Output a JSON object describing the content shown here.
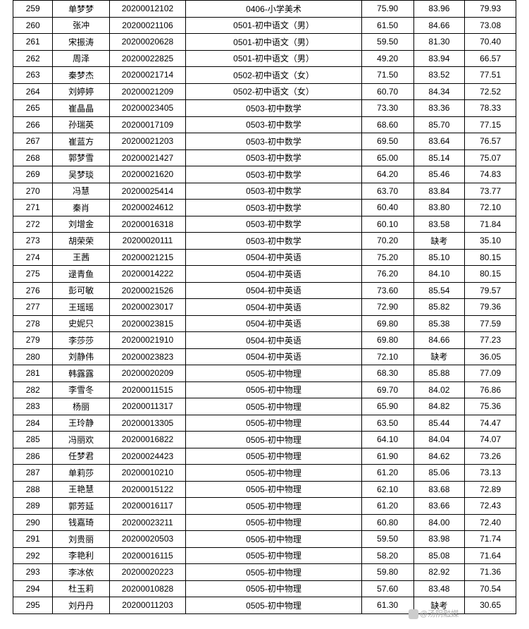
{
  "watermark": "@汤阴融媒",
  "table": {
    "columns": [
      {
        "key": "idx",
        "class": "col-idx"
      },
      {
        "key": "name",
        "class": "col-name"
      },
      {
        "key": "exam",
        "class": "col-exam"
      },
      {
        "key": "subject",
        "class": "col-subj"
      },
      {
        "key": "s1",
        "class": "col-s1"
      },
      {
        "key": "s2",
        "class": "col-s2"
      },
      {
        "key": "s3",
        "class": "col-s3"
      }
    ],
    "rows": [
      {
        "idx": "259",
        "name": "单梦梦",
        "exam": "20200012102",
        "subject": "0406-小学美术",
        "s1": "75.90",
        "s2": "83.96",
        "s3": "79.93"
      },
      {
        "idx": "260",
        "name": "张冲",
        "exam": "20200021106",
        "subject": "0501-初中语文（男）",
        "s1": "61.50",
        "s2": "84.66",
        "s3": "73.08"
      },
      {
        "idx": "261",
        "name": "宋振涛",
        "exam": "20200020628",
        "subject": "0501-初中语文（男）",
        "s1": "59.50",
        "s2": "81.30",
        "s3": "70.40"
      },
      {
        "idx": "262",
        "name": "周泽",
        "exam": "20200022825",
        "subject": "0501-初中语文（男）",
        "s1": "49.20",
        "s2": "83.94",
        "s3": "66.57"
      },
      {
        "idx": "263",
        "name": "秦梦杰",
        "exam": "20200021714",
        "subject": "0502-初中语文（女）",
        "s1": "71.50",
        "s2": "83.52",
        "s3": "77.51"
      },
      {
        "idx": "264",
        "name": "刘婷婷",
        "exam": "20200021209",
        "subject": "0502-初中语文（女）",
        "s1": "60.70",
        "s2": "84.34",
        "s3": "72.52"
      },
      {
        "idx": "265",
        "name": "崔晶晶",
        "exam": "20200023405",
        "subject": "0503-初中数学",
        "s1": "73.30",
        "s2": "83.36",
        "s3": "78.33"
      },
      {
        "idx": "266",
        "name": "孙瑞英",
        "exam": "20200017109",
        "subject": "0503-初中数学",
        "s1": "68.60",
        "s2": "85.70",
        "s3": "77.15"
      },
      {
        "idx": "267",
        "name": "崔蓝方",
        "exam": "20200021203",
        "subject": "0503-初中数学",
        "s1": "69.50",
        "s2": "83.64",
        "s3": "76.57"
      },
      {
        "idx": "268",
        "name": "郭梦雪",
        "exam": "20200021427",
        "subject": "0503-初中数学",
        "s1": "65.00",
        "s2": "85.14",
        "s3": "75.07"
      },
      {
        "idx": "269",
        "name": "吴梦琰",
        "exam": "20200021620",
        "subject": "0503-初中数学",
        "s1": "64.20",
        "s2": "85.46",
        "s3": "74.83"
      },
      {
        "idx": "270",
        "name": "冯慧",
        "exam": "20200025414",
        "subject": "0503-初中数学",
        "s1": "63.70",
        "s2": "83.84",
        "s3": "73.77"
      },
      {
        "idx": "271",
        "name": "秦肖",
        "exam": "20200024612",
        "subject": "0503-初中数学",
        "s1": "60.40",
        "s2": "83.80",
        "s3": "72.10"
      },
      {
        "idx": "272",
        "name": "刘增金",
        "exam": "20200016318",
        "subject": "0503-初中数学",
        "s1": "60.10",
        "s2": "83.58",
        "s3": "71.84"
      },
      {
        "idx": "273",
        "name": "胡荣荣",
        "exam": "20200020111",
        "subject": "0503-初中数学",
        "s1": "70.20",
        "s2": "缺考",
        "s3": "35.10"
      },
      {
        "idx": "274",
        "name": "王茜",
        "exam": "20200021215",
        "subject": "0504-初中英语",
        "s1": "75.20",
        "s2": "85.10",
        "s3": "80.15"
      },
      {
        "idx": "275",
        "name": "逯青鱼",
        "exam": "20200014222",
        "subject": "0504-初中英语",
        "s1": "76.20",
        "s2": "84.10",
        "s3": "80.15"
      },
      {
        "idx": "276",
        "name": "彭可敏",
        "exam": "20200021526",
        "subject": "0504-初中英语",
        "s1": "73.60",
        "s2": "85.54",
        "s3": "79.57"
      },
      {
        "idx": "277",
        "name": "王瑶瑶",
        "exam": "20200023017",
        "subject": "0504-初中英语",
        "s1": "72.90",
        "s2": "85.82",
        "s3": "79.36"
      },
      {
        "idx": "278",
        "name": "史妮只",
        "exam": "20200023815",
        "subject": "0504-初中英语",
        "s1": "69.80",
        "s2": "85.38",
        "s3": "77.59"
      },
      {
        "idx": "279",
        "name": "李莎莎",
        "exam": "20200021910",
        "subject": "0504-初中英语",
        "s1": "69.80",
        "s2": "84.66",
        "s3": "77.23"
      },
      {
        "idx": "280",
        "name": "刘静伟",
        "exam": "20200023823",
        "subject": "0504-初中英语",
        "s1": "72.10",
        "s2": "缺考",
        "s3": "36.05"
      },
      {
        "idx": "281",
        "name": "韩露露",
        "exam": "20200020209",
        "subject": "0505-初中物理",
        "s1": "68.30",
        "s2": "85.88",
        "s3": "77.09"
      },
      {
        "idx": "282",
        "name": "李雪冬",
        "exam": "20200011515",
        "subject": "0505-初中物理",
        "s1": "69.70",
        "s2": "84.02",
        "s3": "76.86"
      },
      {
        "idx": "283",
        "name": "杨丽",
        "exam": "20200011317",
        "subject": "0505-初中物理",
        "s1": "65.90",
        "s2": "84.82",
        "s3": "75.36"
      },
      {
        "idx": "284",
        "name": "王玲静",
        "exam": "20200013305",
        "subject": "0505-初中物理",
        "s1": "63.50",
        "s2": "85.44",
        "s3": "74.47"
      },
      {
        "idx": "285",
        "name": "冯丽欢",
        "exam": "20200016822",
        "subject": "0505-初中物理",
        "s1": "64.10",
        "s2": "84.04",
        "s3": "74.07"
      },
      {
        "idx": "286",
        "name": "任梦君",
        "exam": "20200024423",
        "subject": "0505-初中物理",
        "s1": "61.90",
        "s2": "84.62",
        "s3": "73.26"
      },
      {
        "idx": "287",
        "name": "单莉莎",
        "exam": "20200010210",
        "subject": "0505-初中物理",
        "s1": "61.20",
        "s2": "85.06",
        "s3": "73.13"
      },
      {
        "idx": "288",
        "name": "王艳慧",
        "exam": "20200015122",
        "subject": "0505-初中物理",
        "s1": "62.10",
        "s2": "83.68",
        "s3": "72.89"
      },
      {
        "idx": "289",
        "name": "郭芳延",
        "exam": "20200016117",
        "subject": "0505-初中物理",
        "s1": "61.20",
        "s2": "83.66",
        "s3": "72.43"
      },
      {
        "idx": "290",
        "name": "钱嘉琦",
        "exam": "20200023211",
        "subject": "0505-初中物理",
        "s1": "60.80",
        "s2": "84.00",
        "s3": "72.40"
      },
      {
        "idx": "291",
        "name": "刘贵丽",
        "exam": "20200020503",
        "subject": "0505-初中物理",
        "s1": "59.50",
        "s2": "83.98",
        "s3": "71.74"
      },
      {
        "idx": "292",
        "name": "李艳利",
        "exam": "20200016115",
        "subject": "0505-初中物理",
        "s1": "58.20",
        "s2": "85.08",
        "s3": "71.64"
      },
      {
        "idx": "293",
        "name": "李冰依",
        "exam": "20200020223",
        "subject": "0505-初中物理",
        "s1": "59.80",
        "s2": "82.92",
        "s3": "71.36"
      },
      {
        "idx": "294",
        "name": "杜玉莉",
        "exam": "20200010828",
        "subject": "0505-初中物理",
        "s1": "57.60",
        "s2": "83.48",
        "s3": "70.54"
      },
      {
        "idx": "295",
        "name": "刘丹丹",
        "exam": "20200011203",
        "subject": "0505-初中物理",
        "s1": "61.30",
        "s2": "缺考",
        "s3": "30.65"
      }
    ]
  }
}
